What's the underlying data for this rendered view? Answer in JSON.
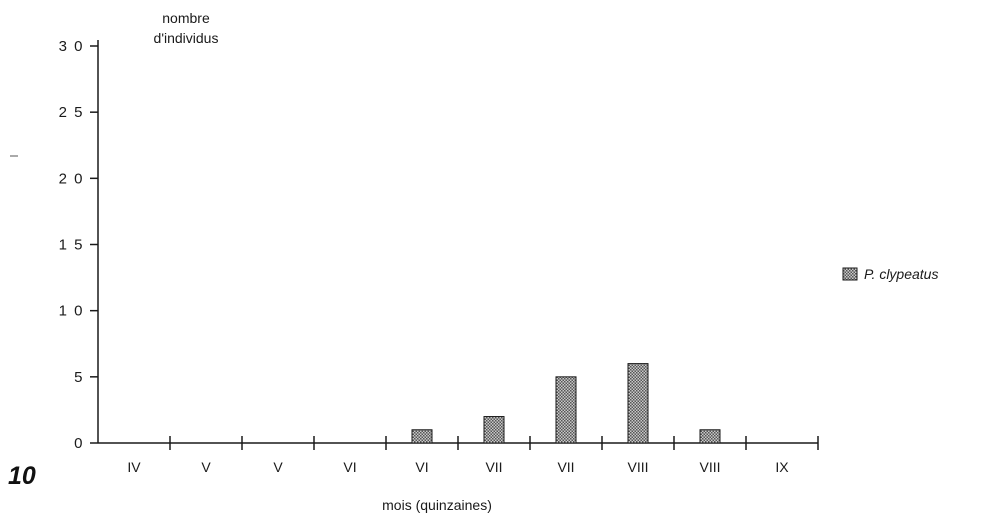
{
  "figure_number": "10",
  "colors": {
    "axis": "#1a1a1a",
    "bar_fill": "#8c8c8c",
    "bar_stroke": "#1a1a1a"
  },
  "chart_data": {
    "type": "bar",
    "ylabel_line1": "nombre",
    "ylabel_line2": "d'individus",
    "xlabel": "mois (quinzaines)",
    "ylim": [
      0,
      30
    ],
    "yticks": [
      0,
      5,
      10,
      15,
      20,
      25,
      30
    ],
    "ytick_labels": [
      "0",
      "5",
      "1 0",
      "1 5",
      "2 0",
      "2 5",
      "3 0"
    ],
    "categories": [
      "IV",
      "V",
      "V",
      "VI",
      "VI",
      "VII",
      "VII",
      "VIII",
      "VIII",
      "IX"
    ],
    "series": [
      {
        "name": "P. clypeatus",
        "values": [
          0,
          0,
          0,
          0,
          1,
          2,
          5,
          6,
          1,
          0
        ]
      }
    ],
    "legend_position": "right",
    "grid": false
  }
}
